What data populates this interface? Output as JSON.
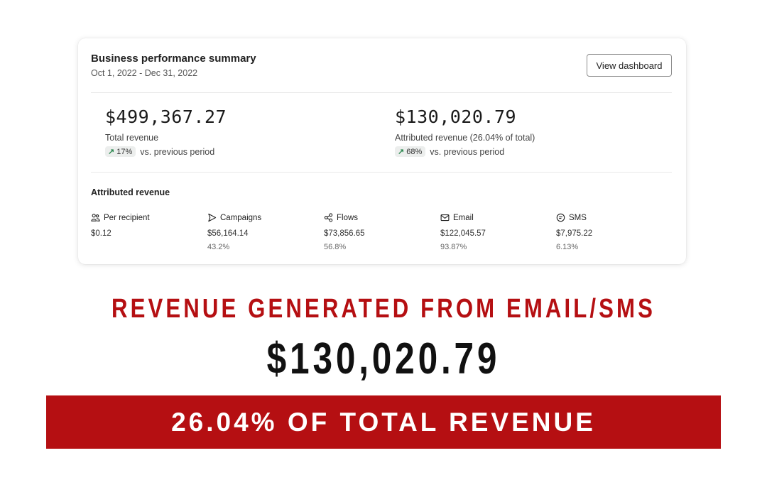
{
  "summary": {
    "title": "Business performance summary",
    "date_range": "Oct 1, 2022 - Dec 31, 2022",
    "view_button": "View dashboard",
    "total": {
      "value": "$499,367.27",
      "label": "Total revenue",
      "change": "17%",
      "change_suffix": "vs. previous period"
    },
    "attributed": {
      "value": "$130,020.79",
      "label": "Attributed revenue (26.04% of total)",
      "change": "68%",
      "change_suffix": "vs. previous period"
    }
  },
  "attributed_section": {
    "title": "Attributed revenue",
    "columns": [
      {
        "label": "Per recipient",
        "value": "$0.12",
        "percent": "",
        "icon": "people-icon"
      },
      {
        "label": "Campaigns",
        "value": "$56,164.14",
        "percent": "43.2%",
        "icon": "send-icon"
      },
      {
        "label": "Flows",
        "value": "$73,856.65",
        "percent": "56.8%",
        "icon": "flow-icon"
      },
      {
        "label": "Email",
        "value": "$122,045.57",
        "percent": "93.87%",
        "icon": "mail-icon"
      },
      {
        "label": "SMS",
        "value": "$7,975.22",
        "percent": "6.13%",
        "icon": "sms-icon"
      }
    ]
  },
  "promo": {
    "headline": "REVENUE GENERATED FROM EMAIL/SMS",
    "amount": "$130,020.79",
    "banner": "26.04% OF TOTAL REVENUE"
  },
  "colors": {
    "accent_red": "#b50f12",
    "trend_green": "#2f8a52"
  }
}
